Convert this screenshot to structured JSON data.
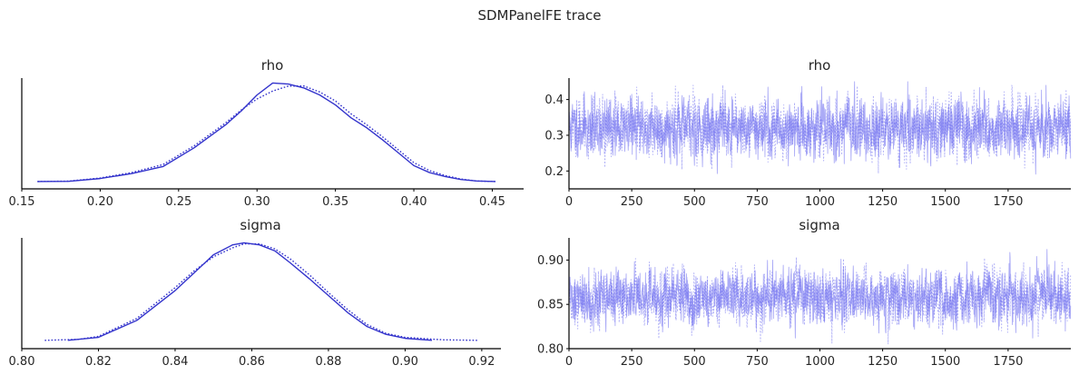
{
  "figure": {
    "title": "SDMPanelFE trace"
  },
  "colors": {
    "line": "#3333cc",
    "trace": "#6666ee"
  },
  "chart_data": [
    {
      "id": "rho-density",
      "type": "line",
      "title": "rho",
      "xlim": [
        0.15,
        0.47
      ],
      "xticks": [
        0.15,
        0.2,
        0.25,
        0.3,
        0.35,
        0.4,
        0.45
      ],
      "xtick_labels": [
        "0.15",
        "0.20",
        "0.25",
        "0.30",
        "0.35",
        "0.40",
        "0.45"
      ],
      "yticks_shown": false,
      "series": [
        {
          "style": "solid",
          "x": [
            0.16,
            0.18,
            0.2,
            0.22,
            0.24,
            0.26,
            0.28,
            0.29,
            0.3,
            0.31,
            0.32,
            0.33,
            0.34,
            0.35,
            0.36,
            0.37,
            0.38,
            0.39,
            0.4,
            0.41,
            0.42,
            0.43,
            0.44,
            0.452
          ],
          "y": [
            0.01,
            0.012,
            0.04,
            0.09,
            0.16,
            0.35,
            0.58,
            0.72,
            0.88,
            1.0,
            0.99,
            0.95,
            0.88,
            0.78,
            0.65,
            0.55,
            0.43,
            0.3,
            0.17,
            0.1,
            0.06,
            0.03,
            0.015,
            0.01
          ]
        },
        {
          "style": "dotted",
          "x": [
            0.16,
            0.18,
            0.2,
            0.22,
            0.24,
            0.26,
            0.28,
            0.29,
            0.3,
            0.31,
            0.32,
            0.33,
            0.34,
            0.35,
            0.36,
            0.37,
            0.38,
            0.39,
            0.4,
            0.41,
            0.42,
            0.43,
            0.44,
            0.452
          ],
          "y": [
            0.01,
            0.014,
            0.045,
            0.1,
            0.18,
            0.37,
            0.6,
            0.73,
            0.84,
            0.92,
            0.97,
            0.97,
            0.91,
            0.82,
            0.69,
            0.58,
            0.46,
            0.33,
            0.2,
            0.12,
            0.07,
            0.035,
            0.015,
            0.01
          ]
        }
      ]
    },
    {
      "id": "rho-trace",
      "type": "line",
      "title": "rho",
      "xlim": [
        0,
        2000
      ],
      "ylim": [
        0.15,
        0.46
      ],
      "xticks": [
        0,
        250,
        500,
        750,
        1000,
        1250,
        1500,
        1750
      ],
      "xtick_labels": [
        "0",
        "250",
        "500",
        "750",
        "1000",
        "1250",
        "1500",
        "1750"
      ],
      "yticks": [
        0.2,
        0.3,
        0.4
      ],
      "ytick_labels": [
        "0.2",
        "0.3",
        "0.4"
      ],
      "draws": 2000,
      "series": [
        {
          "style": "solid",
          "mean": 0.32,
          "sd": 0.04,
          "min": 0.16,
          "max": 0.45,
          "seed": 11
        },
        {
          "style": "dotted",
          "mean": 0.32,
          "sd": 0.04,
          "min": 0.18,
          "max": 0.44,
          "seed": 29
        }
      ]
    },
    {
      "id": "sigma-density",
      "type": "line",
      "title": "sigma",
      "xlim": [
        0.8,
        0.925
      ],
      "xticks": [
        0.8,
        0.82,
        0.84,
        0.86,
        0.88,
        0.9,
        0.92
      ],
      "xtick_labels": [
        "0.80",
        "0.82",
        "0.84",
        "0.86",
        "0.88",
        "0.90",
        "0.92"
      ],
      "yticks_shown": false,
      "series": [
        {
          "style": "solid",
          "x": [
            0.812,
            0.82,
            0.83,
            0.84,
            0.845,
            0.85,
            0.855,
            0.858,
            0.862,
            0.866,
            0.87,
            0.875,
            0.88,
            0.885,
            0.89,
            0.895,
            0.9,
            0.907
          ],
          "y": [
            0.02,
            0.05,
            0.22,
            0.52,
            0.7,
            0.88,
            0.98,
            1.0,
            0.98,
            0.92,
            0.8,
            0.64,
            0.47,
            0.3,
            0.16,
            0.08,
            0.04,
            0.02
          ]
        },
        {
          "style": "dotted",
          "x": [
            0.806,
            0.815,
            0.82,
            0.83,
            0.84,
            0.845,
            0.85,
            0.855,
            0.858,
            0.862,
            0.866,
            0.87,
            0.875,
            0.88,
            0.885,
            0.89,
            0.895,
            0.9,
            0.91,
            0.919
          ],
          "y": [
            0.02,
            0.03,
            0.06,
            0.24,
            0.55,
            0.72,
            0.86,
            0.95,
            0.99,
            0.99,
            0.94,
            0.84,
            0.68,
            0.5,
            0.33,
            0.18,
            0.09,
            0.05,
            0.025,
            0.02
          ]
        }
      ]
    },
    {
      "id": "sigma-trace",
      "type": "line",
      "title": "sigma",
      "xlim": [
        0,
        2000
      ],
      "ylim": [
        0.8,
        0.925
      ],
      "xticks": [
        0,
        250,
        500,
        750,
        1000,
        1250,
        1500,
        1750
      ],
      "xtick_labels": [
        "0",
        "250",
        "500",
        "750",
        "1000",
        "1250",
        "1500",
        "1750"
      ],
      "yticks": [
        0.8,
        0.85,
        0.9
      ],
      "ytick_labels": [
        "0.80",
        "0.85",
        "0.90"
      ],
      "draws": 2000,
      "series": [
        {
          "style": "solid",
          "mean": 0.858,
          "sd": 0.015,
          "min": 0.812,
          "max": 0.917,
          "seed": 41
        },
        {
          "style": "dotted",
          "mean": 0.858,
          "sd": 0.015,
          "min": 0.805,
          "max": 0.913,
          "seed": 73
        }
      ]
    }
  ]
}
